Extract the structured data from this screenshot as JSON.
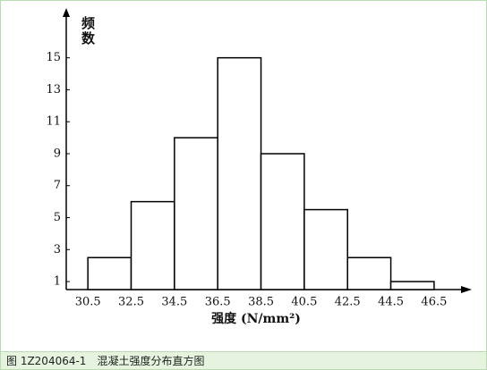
{
  "chart_data": {
    "type": "histogram",
    "ylabel": "频数",
    "xlabel": "强度 (N/mm²)",
    "caption": "图 1Z204064-1　混凝土强度分布直方图",
    "bins": [
      30.5,
      32.5,
      34.5,
      36.5,
      38.5,
      40.5,
      42.5,
      44.5,
      46.5
    ],
    "counts": [
      2.5,
      6,
      10,
      15,
      9,
      5.5,
      2.5,
      1
    ],
    "color": "#ffffff",
    "xlim": [
      29.5,
      48.2
    ],
    "xticks": [
      30.5,
      32.5,
      34.5,
      36.5,
      38.5,
      40.5,
      42.5,
      44.5,
      46.5
    ],
    "ylim": [
      0.5,
      18
    ],
    "yticks": [
      1,
      3,
      5,
      7,
      9,
      11,
      13,
      15
    ]
  }
}
